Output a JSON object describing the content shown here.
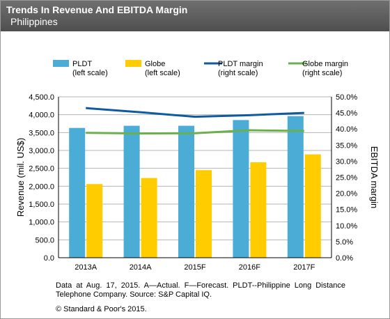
{
  "header": {
    "title": "Trends In Revenue And EBITDA Margin",
    "subtitle": "Philippines"
  },
  "colors": {
    "header_bg": "#5e5e5e",
    "pldt": "#4bacd6",
    "globe": "#ffcc00",
    "pldt_margin": "#0f5aa0",
    "globe_margin": "#6ab04c"
  },
  "chart_data": {
    "type": "bar",
    "categories": [
      "2013A",
      "2014A",
      "2015F",
      "2016F",
      "2017F"
    ],
    "series": [
      {
        "name": "PLDT",
        "sub": "(left scale)",
        "kind": "bar",
        "axis": "left",
        "values": [
          3630,
          3690,
          3690,
          3850,
          3960
        ]
      },
      {
        "name": "Globe",
        "sub": "(left scale)",
        "kind": "bar",
        "axis": "left",
        "values": [
          2060,
          2230,
          2450,
          2670,
          2890
        ]
      },
      {
        "name": "PLDT margin",
        "sub": "(right scale)",
        "kind": "line",
        "axis": "right",
        "values": [
          46.5,
          45.2,
          43.8,
          44.3,
          45.0
        ]
      },
      {
        "name": "Globe margin",
        "sub": "(right scale)",
        "kind": "line",
        "axis": "right",
        "values": [
          38.8,
          38.6,
          38.7,
          39.6,
          39.4
        ]
      }
    ],
    "ylabel": "Revenue (mil. US$)",
    "ylabel_right": "EBITDA margin",
    "ylim": [
      0,
      4500
    ],
    "ylim_right": [
      0,
      50
    ],
    "yticks": [
      "0.0",
      "500.0",
      "1,000.0",
      "1,500.0",
      "2,000.0",
      "2,500.0",
      "3,000.0",
      "3,500.0",
      "4,000.0",
      "4,500.0"
    ],
    "yticks_right": [
      "0.0%",
      "5.0%",
      "10.0%",
      "15.0%",
      "20.0%",
      "25.0%",
      "30.0%",
      "35.0%",
      "40.0%",
      "45.0%",
      "50.0%"
    ],
    "grid": true,
    "legend": "top"
  },
  "footnote": "Data at Aug. 17, 2015. A—Actual. F—Forecast. PLDT--Philippine Long Distance Telephone Company. Source: S&P Capital IQ.",
  "copyright": "© Standard & Poor's 2015."
}
